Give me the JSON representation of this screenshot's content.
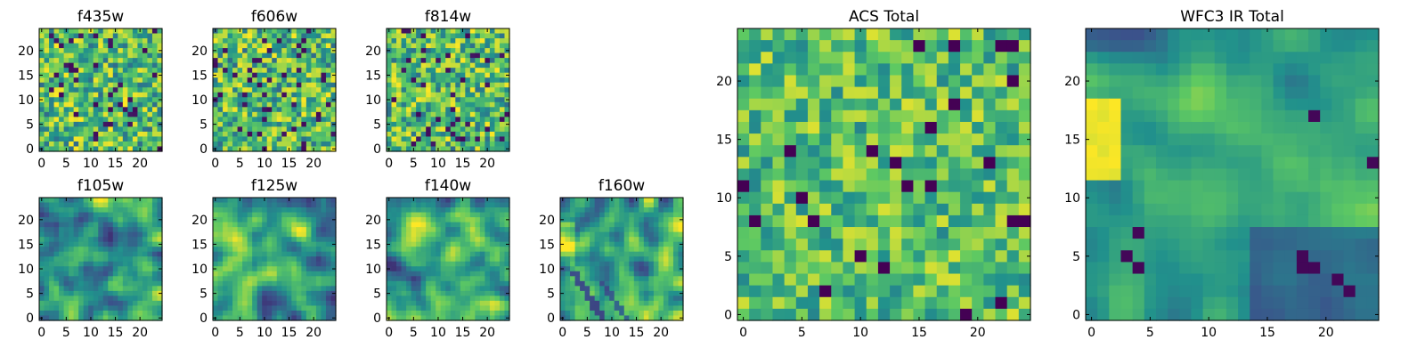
{
  "figure": {
    "colormap": "viridis",
    "colormap_stops": [
      "#440154",
      "#3b528b",
      "#21918c",
      "#5ec962",
      "#fde725"
    ],
    "background": "#ffffff"
  },
  "chart_data": [
    {
      "id": "f435w",
      "type": "heatmap",
      "title": "f435w",
      "grid_size": [
        25,
        25
      ],
      "xlim": [
        0,
        24
      ],
      "ylim": [
        0,
        24
      ],
      "xticks": [
        "0",
        "5",
        "10",
        "15",
        "20"
      ],
      "yticks": [
        "0",
        "5",
        "10",
        "15",
        "20"
      ],
      "texture": "fine noise",
      "value_range": [
        0,
        1
      ],
      "seed": 11
    },
    {
      "id": "f606w",
      "type": "heatmap",
      "title": "f606w",
      "grid_size": [
        25,
        25
      ],
      "xlim": [
        0,
        24
      ],
      "ylim": [
        0,
        24
      ],
      "xticks": [
        "0",
        "5",
        "10",
        "15",
        "20"
      ],
      "yticks": [
        "0",
        "5",
        "10",
        "15",
        "20"
      ],
      "texture": "fine noise",
      "value_range": [
        0,
        1
      ],
      "seed": 23
    },
    {
      "id": "f814w",
      "type": "heatmap",
      "title": "f814w",
      "grid_size": [
        25,
        25
      ],
      "xlim": [
        0,
        24
      ],
      "ylim": [
        0,
        24
      ],
      "xticks": [
        "0",
        "5",
        "10",
        "15",
        "20"
      ],
      "yticks": [
        "0",
        "5",
        "10",
        "15",
        "20"
      ],
      "texture": "fine noise",
      "value_range": [
        0,
        1
      ],
      "seed": 37
    },
    {
      "id": "f105w",
      "type": "heatmap",
      "title": "f105w",
      "grid_size": [
        25,
        25
      ],
      "xlim": [
        0,
        24
      ],
      "ylim": [
        0,
        24
      ],
      "xticks": [
        "0",
        "5",
        "10",
        "15",
        "20"
      ],
      "yticks": [
        "0",
        "5",
        "10",
        "15",
        "20"
      ],
      "texture": "smooth",
      "value_range": [
        0,
        1
      ],
      "seed": 41
    },
    {
      "id": "f125w",
      "type": "heatmap",
      "title": "f125w",
      "grid_size": [
        25,
        25
      ],
      "xlim": [
        0,
        24
      ],
      "ylim": [
        0,
        24
      ],
      "xticks": [
        "0",
        "5",
        "10",
        "15",
        "20"
      ],
      "yticks": [
        "0",
        "5",
        "10",
        "15",
        "20"
      ],
      "texture": "smooth",
      "value_range": [
        0,
        1
      ],
      "seed": 53
    },
    {
      "id": "f140w",
      "type": "heatmap",
      "title": "f140w",
      "grid_size": [
        25,
        25
      ],
      "xlim": [
        0,
        24
      ],
      "ylim": [
        0,
        24
      ],
      "xticks": [
        "0",
        "5",
        "10",
        "15",
        "20"
      ],
      "yticks": [
        "0",
        "5",
        "10",
        "15",
        "20"
      ],
      "texture": "smooth",
      "value_range": [
        0,
        1
      ],
      "seed": 67
    },
    {
      "id": "f160w",
      "type": "heatmap",
      "title": "f160w",
      "grid_size": [
        25,
        25
      ],
      "xlim": [
        0,
        24
      ],
      "ylim": [
        0,
        24
      ],
      "xticks": [
        "0",
        "5",
        "10",
        "15",
        "20"
      ],
      "yticks": [
        "0",
        "5",
        "10",
        "15",
        "20"
      ],
      "texture": "smooth with dark diagonal streaks",
      "value_range": [
        0,
        1
      ],
      "seed": 79
    },
    {
      "id": "acs-total",
      "type": "heatmap",
      "title": "ACS Total",
      "grid_size": [
        25,
        25
      ],
      "xlim": [
        0,
        24
      ],
      "ylim": [
        0,
        24
      ],
      "xticks": [
        "0",
        "5",
        "10",
        "15",
        "20"
      ],
      "yticks": [
        "0",
        "5",
        "10",
        "15",
        "20"
      ],
      "texture": "noise",
      "value_range": [
        0,
        1
      ],
      "seed": 83
    },
    {
      "id": "wfc3-ir-total",
      "type": "heatmap",
      "title": "WFC3 IR Total",
      "grid_size": [
        25,
        25
      ],
      "xlim": [
        0,
        24
      ],
      "ylim": [
        0,
        24
      ],
      "xticks": [
        "0",
        "5",
        "10",
        "15",
        "20"
      ],
      "yticks": [
        "0",
        "5",
        "10",
        "15",
        "20"
      ],
      "texture": "smooth, bright left edge, dark lower right",
      "value_range": [
        0,
        1
      ],
      "seed": 97
    }
  ]
}
